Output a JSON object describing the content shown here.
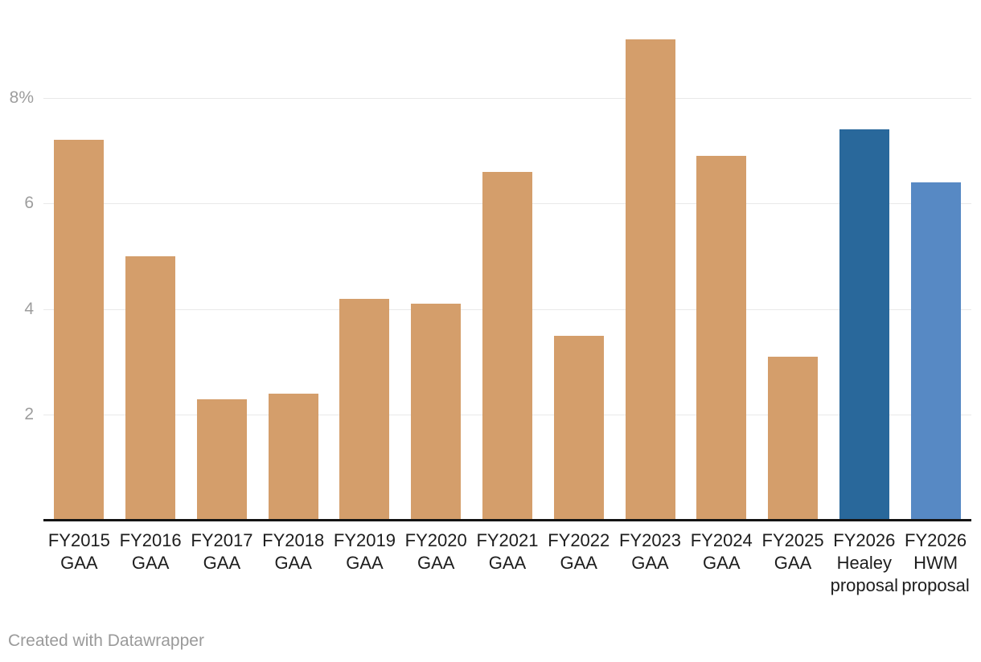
{
  "credit": "Created with Datawrapper",
  "colors": {
    "bar_default": "#d49e6b",
    "bar_healey_proposal": "#29689b",
    "bar_hwm_proposal": "#5789c4",
    "gridline": "#e9e9e9",
    "axis_line": "#141414",
    "tick_label": "#9d9d9d",
    "category_label": "#1d1d1d",
    "credit_text": "#9a9a9a"
  },
  "chart_data": {
    "type": "bar",
    "title": "",
    "xlabel": "",
    "ylabel": "",
    "unit": "%",
    "grid": true,
    "legend": "none",
    "ylim": [
      0,
      9.85
    ],
    "categories": [
      "FY2015 GAA",
      "FY2016 GAA",
      "FY2017 GAA",
      "FY2018 GAA",
      "FY2019 GAA",
      "FY2020 GAA",
      "FY2021 GAA",
      "FY2022 GAA",
      "FY2023 GAA",
      "FY2024 GAA",
      "FY2025 GAA",
      "FY2026 Healey proposal",
      "FY2026 HWM proposal"
    ],
    "category_lines": [
      [
        "FY2015",
        "GAA"
      ],
      [
        "FY2016",
        "GAA"
      ],
      [
        "FY2017",
        "GAA"
      ],
      [
        "FY2018",
        "GAA"
      ],
      [
        "FY2019",
        "GAA"
      ],
      [
        "FY2020",
        "GAA"
      ],
      [
        "FY2021",
        "GAA"
      ],
      [
        "FY2022",
        "GAA"
      ],
      [
        "FY2023",
        "GAA"
      ],
      [
        "FY2024",
        "GAA"
      ],
      [
        "FY2025",
        "GAA"
      ],
      [
        "FY2026",
        "Healey",
        "proposal"
      ],
      [
        "FY2026",
        "HWM",
        "proposal"
      ]
    ],
    "values": [
      7.2,
      5.0,
      2.3,
      2.4,
      4.2,
      4.1,
      6.6,
      3.5,
      9.1,
      6.9,
      3.1,
      7.4,
      6.4
    ],
    "bar_colors": [
      "#d49e6b",
      "#d49e6b",
      "#d49e6b",
      "#d49e6b",
      "#d49e6b",
      "#d49e6b",
      "#d49e6b",
      "#d49e6b",
      "#d49e6b",
      "#d49e6b",
      "#d49e6b",
      "#29689b",
      "#5789c4"
    ],
    "y_ticks": [
      {
        "value": 2,
        "label": "2"
      },
      {
        "value": 4,
        "label": "4"
      },
      {
        "value": 6,
        "label": "6"
      },
      {
        "value": 8,
        "label": "8%"
      }
    ]
  }
}
